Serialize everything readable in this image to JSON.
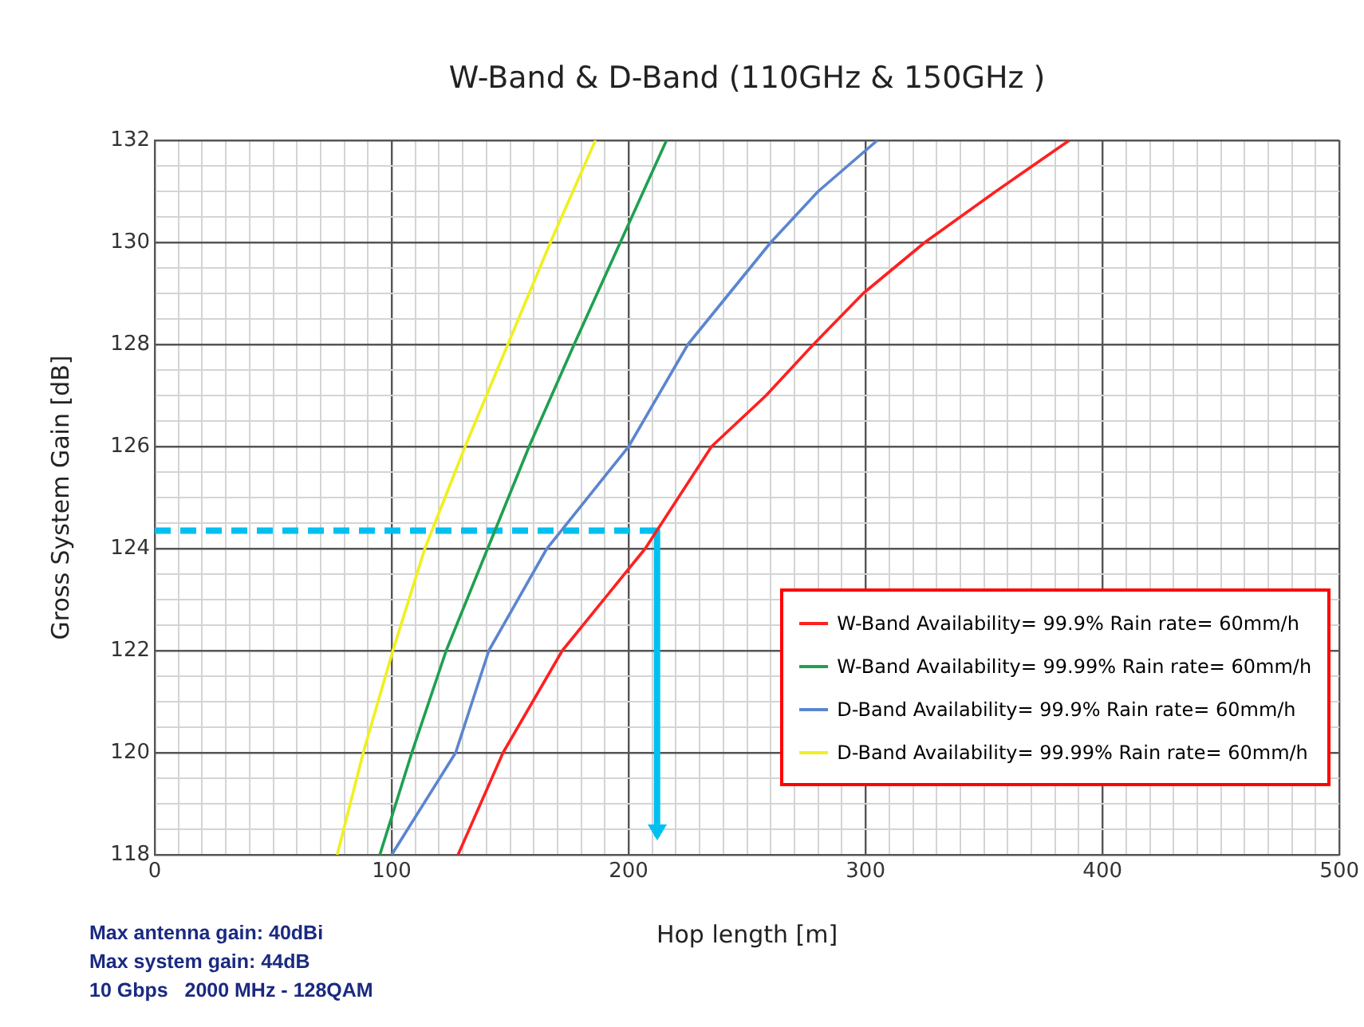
{
  "chart_data": {
    "type": "line",
    "title": "W-Band & D-Band (110GHz & 150GHz )",
    "xlabel": "Hop length [m]",
    "ylabel": "Gross System Gain [dB]",
    "xlim": [
      0,
      500
    ],
    "ylim": [
      118,
      132
    ],
    "xticks": [
      0,
      {
        "value": 10,
        "label": null
      },
      {
        "value": 20,
        "label": null
      },
      {
        "value": 30,
        "label": null
      },
      {
        "value": 40,
        "label": null
      },
      {
        "value": 50,
        "label": null
      },
      {
        "value": 60,
        "label": null
      },
      {
        "value": 70,
        "label": null
      },
      {
        "value": 80,
        "label": null
      },
      {
        "value": 90,
        "label": null
      },
      100,
      {
        "value": 110,
        "label": null
      },
      {
        "value": 120,
        "label": null
      },
      {
        "value": 130,
        "label": null
      },
      {
        "value": 140,
        "label": null
      },
      {
        "value": 150,
        "label": null
      },
      {
        "value": 160,
        "label": null
      },
      {
        "value": 170,
        "label": null
      },
      {
        "value": 180,
        "label": null
      },
      {
        "value": 190,
        "label": null
      },
      200,
      {
        "value": 210,
        "label": null
      },
      {
        "value": 220,
        "label": null
      },
      {
        "value": 230,
        "label": null
      },
      {
        "value": 240,
        "label": null
      },
      {
        "value": 250,
        "label": null
      },
      {
        "value": 260,
        "label": null
      },
      {
        "value": 270,
        "label": null
      },
      {
        "value": 280,
        "label": null
      },
      {
        "value": 290,
        "label": null
      },
      300,
      {
        "value": 310,
        "label": null
      },
      {
        "value": 320,
        "label": null
      },
      {
        "value": 330,
        "label": null
      },
      {
        "value": 340,
        "label": null
      },
      {
        "value": 350,
        "label": null
      },
      {
        "value": 360,
        "label": null
      },
      {
        "value": 370,
        "label": null
      },
      {
        "value": 380,
        "label": null
      },
      {
        "value": 390,
        "label": null
      },
      400,
      {
        "value": 410,
        "label": null
      },
      {
        "value": 420,
        "label": null
      },
      {
        "value": 430,
        "label": null
      },
      {
        "value": 440,
        "label": null
      },
      {
        "value": 450,
        "label": null
      },
      {
        "value": 460,
        "label": null
      },
      {
        "value": 470,
        "label": null
      },
      {
        "value": 480,
        "label": null
      },
      {
        "value": 490,
        "label": null
      },
      500
    ],
    "yticks": [
      118,
      {
        "value": 118.5,
        "label": null
      },
      {
        "value": 119,
        "label": null
      },
      {
        "value": 119.5,
        "label": null
      },
      120,
      {
        "value": 120.5,
        "label": null
      },
      {
        "value": 121,
        "label": null
      },
      {
        "value": 121.5,
        "label": null
      },
      122,
      {
        "value": 122.5,
        "label": null
      },
      {
        "value": 123,
        "label": null
      },
      {
        "value": 123.5,
        "label": null
      },
      124,
      {
        "value": 124.5,
        "label": null
      },
      {
        "value": 125,
        "label": null
      },
      {
        "value": 125.5,
        "label": null
      },
      126,
      {
        "value": 126.5,
        "label": null
      },
      {
        "value": 127,
        "label": null
      },
      {
        "value": 127.5,
        "label": null
      },
      128,
      {
        "value": 128.5,
        "label": null
      },
      {
        "value": 129,
        "label": null
      },
      {
        "value": 129.5,
        "label": null
      },
      130,
      {
        "value": 130.5,
        "label": null
      },
      {
        "value": 131,
        "label": null
      },
      {
        "value": 131.5,
        "label": null
      },
      132
    ],
    "grid": true,
    "legend": "bottom right",
    "series": [
      {
        "name": "W-Band Availability= 99.9% Rain rate= 60mm/h",
        "color": "#ff2020",
        "x": [
          128,
          147,
          172,
          207,
          235,
          258,
          278,
          299,
          325,
          355,
          386
        ],
        "values": [
          118,
          120,
          122,
          124,
          126,
          127,
          128,
          129,
          130,
          131,
          132
        ]
      },
      {
        "name": "W-Band Availability= 99.99% Rain rate= 60mm/h",
        "color": "#1fa050",
        "x": [
          95,
          108.5,
          123,
          140.5,
          158,
          177,
          196.5,
          216
        ],
        "values": [
          118,
          120,
          122,
          124,
          126,
          128,
          130,
          132
        ]
      },
      {
        "name": "D-Band Availability= 99.9% Rain rate= 60mm/h",
        "color": "#5b85d0",
        "x": [
          100,
          127,
          141,
          165.5,
          200,
          225,
          260,
          280,
          305
        ],
        "values": [
          118,
          120,
          122,
          124,
          126,
          128,
          130,
          131,
          132
        ]
      },
      {
        "name": "D-Band Availability= 99.99% Rain rate= 60mm/h",
        "color": "#f0f020",
        "x": [
          77,
          88,
          100.5,
          114,
          131,
          149,
          167,
          186
        ],
        "values": [
          118,
          120,
          122,
          124,
          126,
          128,
          130,
          132
        ]
      },
      {
        "color": "#00c0f0",
        "line_style": "dashed",
        "x": [
          0,
          212
        ],
        "values": [
          124.35,
          124.35
        ]
      },
      {
        "color": "#00c0f0",
        "line_style": "solid",
        "x": [
          212,
          212
        ],
        "values": [
          124.35,
          118.4
        ]
      }
    ],
    "annotations": [
      "Max antenna gain: 40dBi",
      "Max system gain: 44dB",
      "10 Gbps   2000 MHz - 128QAM"
    ]
  }
}
